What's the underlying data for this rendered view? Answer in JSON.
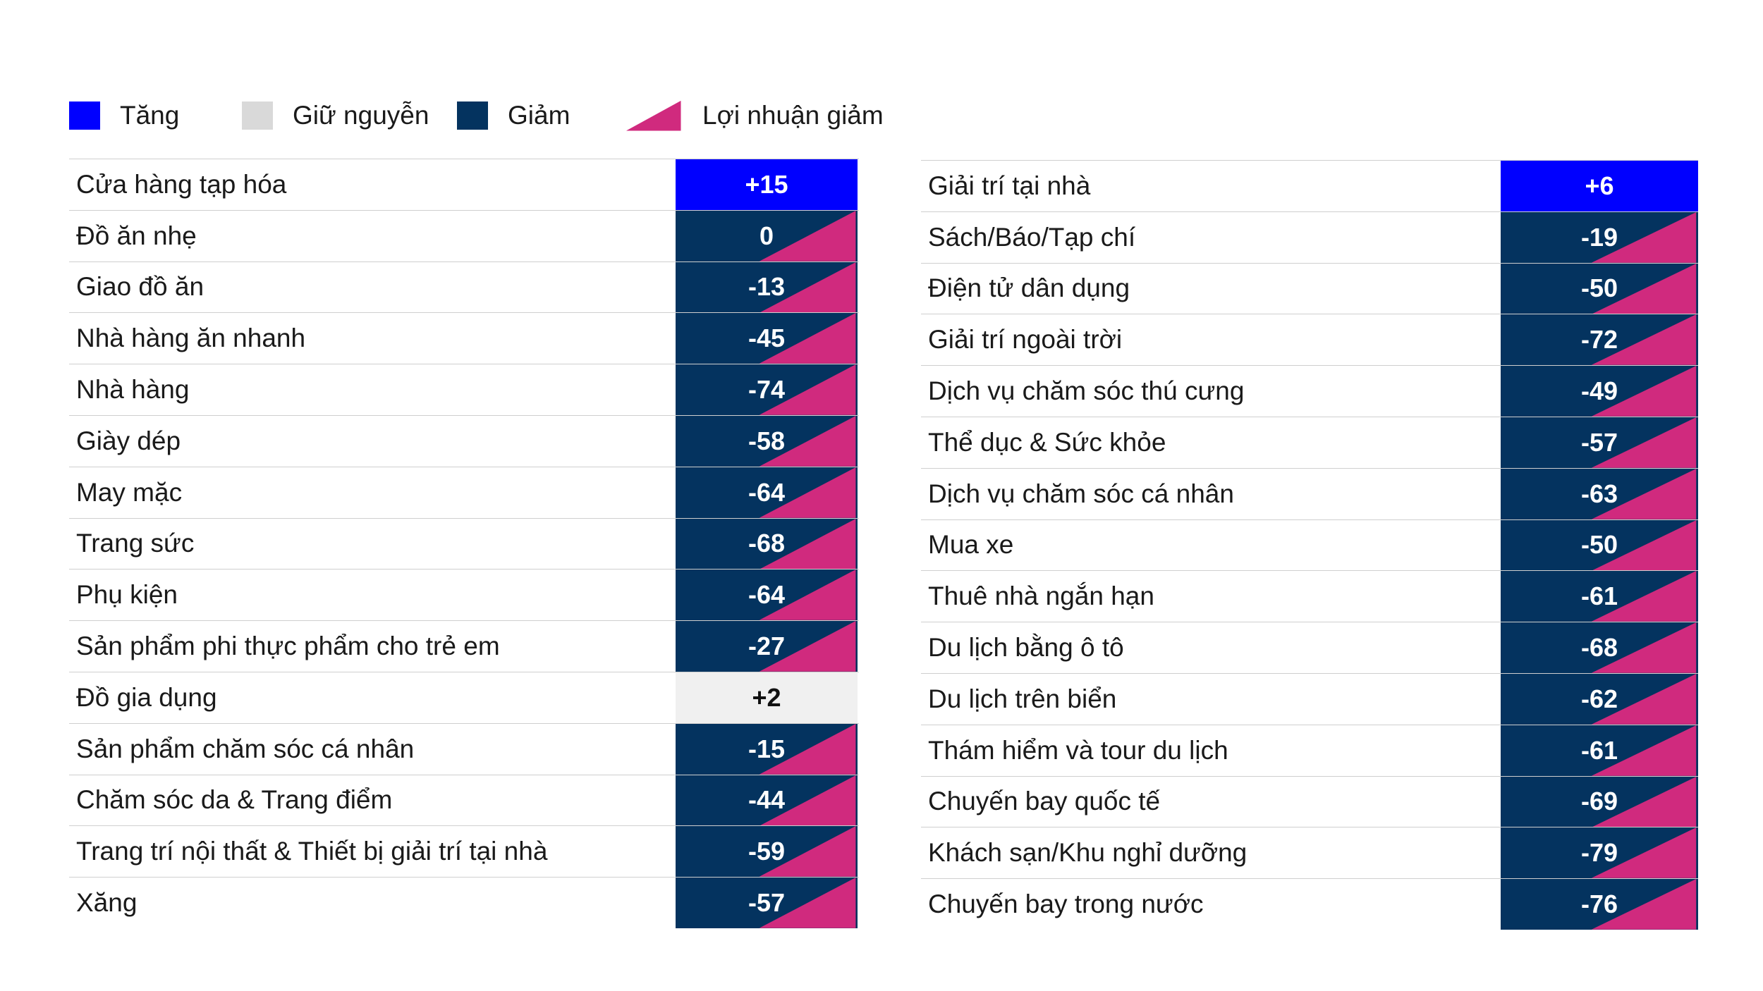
{
  "colors": {
    "increase": "#0000FF",
    "flat": "#F0F0F0",
    "decrease": "#04335F",
    "profit_decline": "#D02A7E"
  },
  "legend": [
    {
      "key": "increase",
      "label": "Tăng",
      "marker": "square"
    },
    {
      "key": "flat",
      "label": "Giữ nguyễn",
      "marker": "square"
    },
    {
      "key": "decrease",
      "label": "Giảm",
      "marker": "square"
    },
    {
      "key": "profit_decline",
      "label": "Lợi nhuận giảm",
      "marker": "triangle"
    }
  ],
  "chart_data": [
    {
      "type": "table",
      "rows": [
        {
          "label": "Cửa hàng tạp hóa",
          "value": "+15",
          "status": "increase",
          "profit_decline": false
        },
        {
          "label": "Đồ ăn nhẹ",
          "value": "0",
          "status": "decrease",
          "profit_decline": true
        },
        {
          "label": "Giao đồ ăn",
          "value": "-13",
          "status": "decrease",
          "profit_decline": true
        },
        {
          "label": "Nhà hàng ăn nhanh",
          "value": "-45",
          "status": "decrease",
          "profit_decline": true
        },
        {
          "label": "Nhà hàng",
          "value": "-74",
          "status": "decrease",
          "profit_decline": true
        },
        {
          "label": "Giày dép",
          "value": "-58",
          "status": "decrease",
          "profit_decline": true
        },
        {
          "label": "May mặc",
          "value": "-64",
          "status": "decrease",
          "profit_decline": true
        },
        {
          "label": "Trang sức",
          "value": "-68",
          "status": "decrease",
          "profit_decline": true
        },
        {
          "label": "Phụ kiện",
          "value": "-64",
          "status": "decrease",
          "profit_decline": true
        },
        {
          "label": "Sản phẩm phi thực phẩm cho trẻ em",
          "value": "-27",
          "status": "decrease",
          "profit_decline": true
        },
        {
          "label": "Đồ gia dụng",
          "value": "+2",
          "status": "flat",
          "profit_decline": false
        },
        {
          "label": "Sản phẩm chăm sóc cá nhân",
          "value": "-15",
          "status": "decrease",
          "profit_decline": true
        },
        {
          "label": "Chăm sóc da & Trang điểm",
          "value": "-44",
          "status": "decrease",
          "profit_decline": true
        },
        {
          "label": "Trang trí nội thất & Thiết bị giải trí tại nhà",
          "value": "-59",
          "status": "decrease",
          "profit_decline": true
        },
        {
          "label": "Xăng",
          "value": "-57",
          "status": "decrease",
          "profit_decline": true
        }
      ]
    },
    {
      "type": "table",
      "rows": [
        {
          "label": "Giải trí tại nhà",
          "value": "+6",
          "status": "increase",
          "profit_decline": false
        },
        {
          "label": "Sách/Báo/Tạp chí",
          "value": "-19",
          "status": "decrease",
          "profit_decline": true
        },
        {
          "label": "Điện tử dân dụng",
          "value": "-50",
          "status": "decrease",
          "profit_decline": true
        },
        {
          "label": "Giải trí ngoài trời",
          "value": "-72",
          "status": "decrease",
          "profit_decline": true
        },
        {
          "label": "Dịch vụ chăm sóc thú cưng",
          "value": "-49",
          "status": "decrease",
          "profit_decline": true
        },
        {
          "label": "Thể dục & Sức khỏe",
          "value": "-57",
          "status": "decrease",
          "profit_decline": true
        },
        {
          "label": "Dịch vụ chăm sóc cá nhân",
          "value": "-63",
          "status": "decrease",
          "profit_decline": true
        },
        {
          "label": "Mua xe",
          "value": "-50",
          "status": "decrease",
          "profit_decline": true
        },
        {
          "label": "Thuê nhà ngắn hạn",
          "value": "-61",
          "status": "decrease",
          "profit_decline": true
        },
        {
          "label": "Du lịch bằng ô tô",
          "value": "-68",
          "status": "decrease",
          "profit_decline": true
        },
        {
          "label": "Du lịch trên biển",
          "value": "-62",
          "status": "decrease",
          "profit_decline": true
        },
        {
          "label": "Thám hiểm và tour du lịch",
          "value": "-61",
          "status": "decrease",
          "profit_decline": true
        },
        {
          "label": "Chuyến bay quốc tế",
          "value": "-69",
          "status": "decrease",
          "profit_decline": true
        },
        {
          "label": "Khách sạn/Khu nghỉ dưỡng",
          "value": "-79",
          "status": "decrease",
          "profit_decline": true
        },
        {
          "label": "Chuyến bay trong nước",
          "value": "-76",
          "status": "decrease",
          "profit_decline": true
        }
      ]
    }
  ]
}
